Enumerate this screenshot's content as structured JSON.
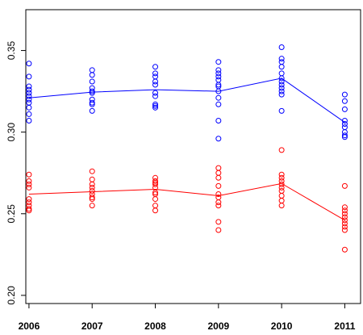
{
  "chart_data": {
    "type": "scatter",
    "title": "",
    "xlabel": "",
    "ylabel": "",
    "x": [
      2006,
      2007,
      2008,
      2009,
      2010,
      2011
    ],
    "x_tick_labels": [
      "2006",
      "2007",
      "2008",
      "2009",
      "2010",
      "2011"
    ],
    "y_ticks": [
      0.2,
      0.25,
      0.3,
      0.35
    ],
    "y_tick_labels": [
      "0.20",
      "0.25",
      "0.30",
      "0.35"
    ],
    "xlim": [
      2005.95,
      2011.25
    ],
    "ylim": [
      0.195,
      0.375
    ],
    "grid": false,
    "series": [
      {
        "color": "#0000ff",
        "points": {
          "2006": [
            0.342,
            0.334,
            0.328,
            0.326,
            0.324,
            0.322,
            0.32,
            0.318,
            0.315,
            0.311,
            0.307
          ],
          "2007": [
            0.338,
            0.335,
            0.331,
            0.327,
            0.325,
            0.324,
            0.32,
            0.318,
            0.317,
            0.313
          ],
          "2008": [
            0.34,
            0.336,
            0.334,
            0.331,
            0.329,
            0.324,
            0.322,
            0.317,
            0.316,
            0.315
          ],
          "2009": [
            0.343,
            0.338,
            0.336,
            0.334,
            0.332,
            0.329,
            0.328,
            0.325,
            0.321,
            0.317,
            0.307,
            0.296
          ],
          "2010": [
            0.352,
            0.345,
            0.343,
            0.34,
            0.336,
            0.333,
            0.331,
            0.329,
            0.327,
            0.325,
            0.323,
            0.313
          ],
          "2011": [
            0.323,
            0.319,
            0.314,
            0.307,
            0.305,
            0.303,
            0.3,
            0.298,
            0.297
          ]
        },
        "line": [
          0.321,
          0.3245,
          0.326,
          0.325,
          0.333,
          0.306
        ]
      },
      {
        "color": "#ff0000",
        "points": {
          "2006": [
            0.274,
            0.27,
            0.268,
            0.266,
            0.259,
            0.257,
            0.255,
            0.253,
            0.252
          ],
          "2007": [
            0.276,
            0.271,
            0.268,
            0.266,
            0.264,
            0.262,
            0.26,
            0.259,
            0.255
          ],
          "2008": [
            0.272,
            0.27,
            0.269,
            0.268,
            0.266,
            0.263,
            0.262,
            0.259,
            0.255,
            0.252
          ],
          "2009": [
            0.278,
            0.275,
            0.272,
            0.267,
            0.262,
            0.26,
            0.257,
            0.255,
            0.245,
            0.24
          ],
          "2010": [
            0.289,
            0.274,
            0.272,
            0.27,
            0.268,
            0.266,
            0.264,
            0.261,
            0.258,
            0.255
          ],
          "2011": [
            0.267,
            0.254,
            0.252,
            0.25,
            0.248,
            0.246,
            0.244,
            0.242,
            0.24,
            0.228
          ]
        },
        "line": [
          0.262,
          0.2635,
          0.265,
          0.261,
          0.2685,
          0.246
        ]
      }
    ]
  }
}
